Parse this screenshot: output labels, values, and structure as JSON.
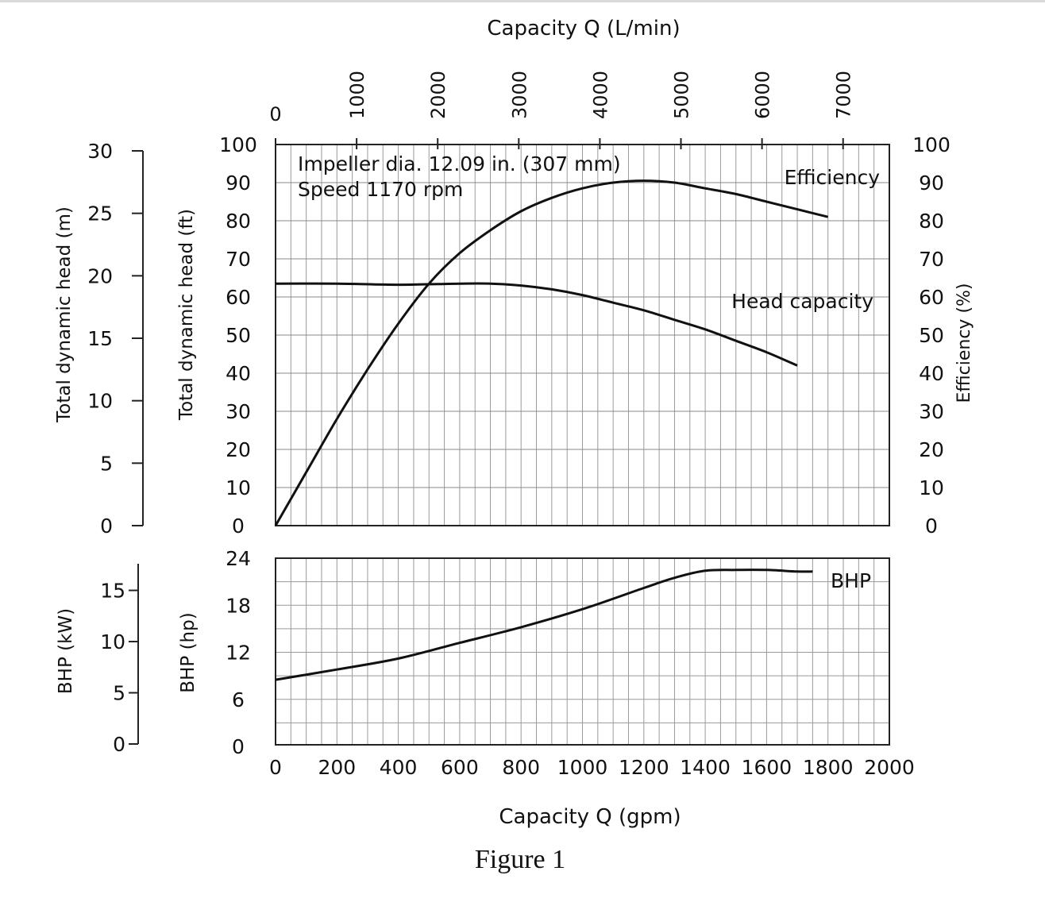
{
  "figure_caption": "Figure 1",
  "top_axis": {
    "label": "Capacity Q (L/min)",
    "ticks": [
      "0",
      "1000",
      "2000",
      "3000",
      "4000",
      "5000",
      "6000",
      "7000"
    ]
  },
  "left_axis_m": {
    "label": "Total dynamic head (m)",
    "ticks": [
      "30",
      "25",
      "20",
      "15",
      "10",
      "5",
      "0"
    ]
  },
  "left_axis_ft": {
    "label": "Total dynamic head (ft)",
    "ticks": [
      "100",
      "90",
      "80",
      "70",
      "60",
      "50",
      "40",
      "30",
      "20",
      "10",
      "0"
    ]
  },
  "right_axis_eff": {
    "label": "Efficiency (%)",
    "ticks": [
      "100",
      "90",
      "80",
      "70",
      "60",
      "50",
      "40",
      "30",
      "20",
      "10",
      "0"
    ]
  },
  "bhp_axis_kw": {
    "label": "BHP (kW)",
    "ticks": [
      "15",
      "10",
      "5",
      "0"
    ]
  },
  "bhp_axis_hp": {
    "label": "BHP (hp)",
    "ticks": [
      "24",
      "18",
      "12",
      "6",
      "0"
    ]
  },
  "bottom_axis": {
    "label": "Capacity Q (gpm)",
    "ticks": [
      "0",
      "200",
      "400",
      "600",
      "800",
      "1000",
      "1200",
      "1400",
      "1600",
      "1800",
      "2000"
    ]
  },
  "annotations": {
    "impeller": "Impeller dia. 12.09 in. (307 mm)",
    "speed": "Speed 1170 rpm",
    "efficiency_label": "Efficiency",
    "head_label": "Head capacity",
    "bhp_label": "BHP"
  },
  "chart_data": [
    {
      "type": "line",
      "xlabel": "Capacity Q (gpm)",
      "ylabel": "Total dynamic head (ft)",
      "xlim": [
        0,
        2000
      ],
      "ylim": [
        0,
        100
      ],
      "grid": true,
      "series": [
        {
          "name": "Head capacity",
          "x": [
            0,
            200,
            400,
            600,
            700,
            800,
            900,
            1000,
            1100,
            1200,
            1300,
            1400,
            1500,
            1600,
            1700
          ],
          "y": [
            63.5,
            63.5,
            63.2,
            63.5,
            63.5,
            63.0,
            62.0,
            60.5,
            58.5,
            56.5,
            54.0,
            51.5,
            48.5,
            45.5,
            42.0
          ]
        },
        {
          "name": "Efficiency",
          "x": [
            0,
            100,
            200,
            300,
            400,
            500,
            600,
            700,
            800,
            900,
            1000,
            1100,
            1200,
            1300,
            1400,
            1500,
            1600,
            1700,
            1800
          ],
          "y": [
            0,
            14,
            28,
            41,
            53,
            63.5,
            71.5,
            77.5,
            82.5,
            86,
            88.5,
            90,
            90.5,
            90,
            88.5,
            87,
            85,
            83,
            81
          ]
        }
      ]
    },
    {
      "type": "line",
      "xlabel": "Capacity Q (gpm)",
      "ylabel": "BHP (hp)",
      "xlim": [
        0,
        2000
      ],
      "ylim": [
        0,
        24
      ],
      "grid": true,
      "series": [
        {
          "name": "BHP",
          "x": [
            0,
            200,
            400,
            600,
            800,
            1000,
            1200,
            1300,
            1400,
            1500,
            1600,
            1700,
            1750
          ],
          "y": [
            8.5,
            9.8,
            11.2,
            13.2,
            15.2,
            17.5,
            20.2,
            21.5,
            22.4,
            22.5,
            22.5,
            22.3,
            22.3
          ]
        }
      ]
    }
  ]
}
